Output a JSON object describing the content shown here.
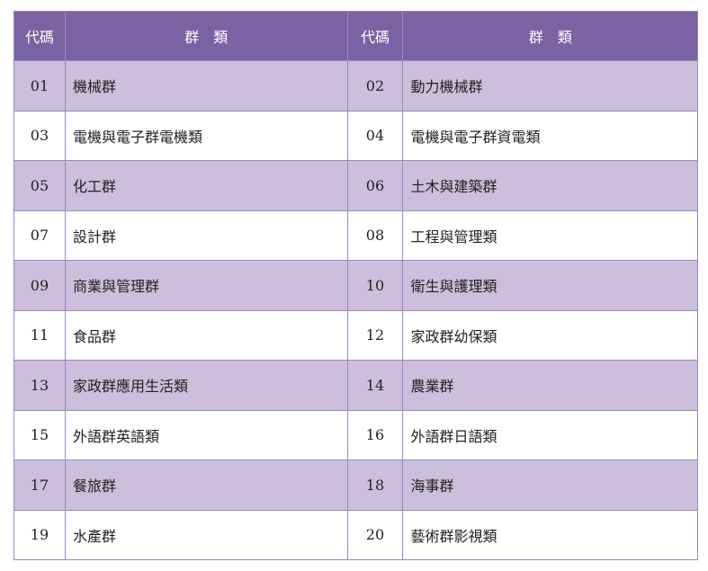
{
  "header": {
    "code": "代碼",
    "group": "群　類"
  },
  "colors": {
    "header_bg": "#7b62a3",
    "alt_row_bg": "#cbbfdb",
    "border": "#9a88c0"
  },
  "rows": [
    {
      "c1": "01",
      "n1": "機械群",
      "c2": "02",
      "n2": "動力機械群"
    },
    {
      "c1": "03",
      "n1": "電機與電子群電機類",
      "c2": "04",
      "n2": "電機與電子群資電類"
    },
    {
      "c1": "05",
      "n1": "化工群",
      "c2": "06",
      "n2": "土木與建築群"
    },
    {
      "c1": "07",
      "n1": "設計群",
      "c2": "08",
      "n2": "工程與管理類"
    },
    {
      "c1": "09",
      "n1": "商業與管理群",
      "c2": "10",
      "n2": "衛生與護理類"
    },
    {
      "c1": "11",
      "n1": "食品群",
      "c2": "12",
      "n2": "家政群幼保類"
    },
    {
      "c1": "13",
      "n1": "家政群應用生活類",
      "c2": "14",
      "n2": "農業群"
    },
    {
      "c1": "15",
      "n1": "外語群英語類",
      "c2": "16",
      "n2": "外語群日語類"
    },
    {
      "c1": "17",
      "n1": "餐旅群",
      "c2": "18",
      "n2": "海事群"
    },
    {
      "c1": "19",
      "n1": "水產群",
      "c2": "20",
      "n2": "藝術群影視類"
    }
  ]
}
